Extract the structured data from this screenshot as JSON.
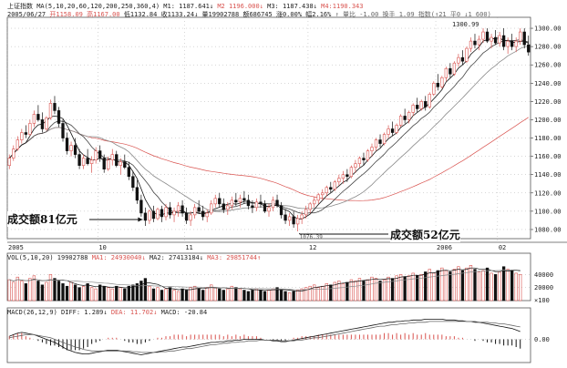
{
  "header": {
    "index_name": "上证指数",
    "ma_params": "MA(5,10,20,60,120,200,250,360,4)",
    "ma1_label": "M1: 1187.641↓",
    "ma2_label": "M2 1196.000↓",
    "ma3_label": "M3: 1187.438↓",
    "ma4_label": "M4:1190.343",
    "date": "2005/06/27",
    "open_label": "开1158.09",
    "high_label": "高1167.00",
    "low_label": "低1132.84",
    "close_label": "收1133.24↓",
    "vol_label": "量19902788",
    "amount_label": "额686745",
    "change_label": "涨0.00%",
    "amp_label": "幅2.16%",
    "extra_label": "↑ 量比 -1.00 换手 1.09 指数(↑21 平0 ↓1 600)"
  },
  "colors": {
    "up": "#d9534f",
    "down": "#111111",
    "ma_short": "#111111",
    "ma_mid": "#444444",
    "ma_long": "#8a8a8a",
    "ma_slow": "#d9534f",
    "dif": "#111111",
    "dea": "#666666",
    "grid": "#9a9a9a"
  },
  "chart_data": {
    "type": "candlestick",
    "ylim": [
      1070,
      1310
    ],
    "y_ticks": [
      "1300.00",
      "1280.00",
      "1260.00",
      "1240.00",
      "1220.00",
      "1200.00",
      "1180.00",
      "1160.00",
      "1140.00",
      "1120.00",
      "1100.00",
      "1080.00"
    ],
    "price_high_label": "1300.99",
    "price_low_label": "1076.39",
    "x_tick_labels": [
      {
        "label": "2005",
        "index": 0
      },
      {
        "label": "10",
        "index": 22
      },
      {
        "label": "11",
        "index": 43
      },
      {
        "label": "12",
        "index": 73
      },
      {
        "label": "2006",
        "index": 104
      },
      {
        "label": "02",
        "index": 119
      }
    ],
    "candles": [
      [
        1150,
        1162,
        1146,
        1158
      ],
      [
        1158,
        1172,
        1155,
        1168
      ],
      [
        1168,
        1182,
        1166,
        1178
      ],
      [
        1178,
        1190,
        1174,
        1186
      ],
      [
        1186,
        1194,
        1180,
        1184
      ],
      [
        1184,
        1200,
        1182,
        1196
      ],
      [
        1196,
        1210,
        1192,
        1206
      ],
      [
        1206,
        1216,
        1198,
        1200
      ],
      [
        1200,
        1208,
        1186,
        1190
      ],
      [
        1190,
        1204,
        1188,
        1202
      ],
      [
        1202,
        1222,
        1200,
        1218
      ],
      [
        1218,
        1226,
        1206,
        1210
      ],
      [
        1210,
        1214,
        1192,
        1196
      ],
      [
        1196,
        1200,
        1176,
        1180
      ],
      [
        1180,
        1186,
        1162,
        1166
      ],
      [
        1166,
        1176,
        1160,
        1172
      ],
      [
        1172,
        1180,
        1158,
        1162
      ],
      [
        1162,
        1168,
        1146,
        1150
      ],
      [
        1150,
        1162,
        1146,
        1158
      ],
      [
        1158,
        1168,
        1150,
        1152
      ],
      [
        1152,
        1160,
        1142,
        1156
      ],
      [
        1156,
        1170,
        1152,
        1166
      ],
      [
        1166,
        1172,
        1154,
        1158
      ],
      [
        1158,
        1162,
        1142,
        1146
      ],
      [
        1146,
        1160,
        1144,
        1156
      ],
      [
        1156,
        1168,
        1150,
        1162
      ],
      [
        1162,
        1166,
        1148,
        1150
      ],
      [
        1150,
        1158,
        1140,
        1154
      ],
      [
        1154,
        1162,
        1146,
        1148
      ],
      [
        1148,
        1154,
        1134,
        1138
      ],
      [
        1138,
        1144,
        1122,
        1126
      ],
      [
        1126,
        1134,
        1108,
        1112
      ],
      [
        1112,
        1118,
        1094,
        1098
      ],
      [
        1098,
        1104,
        1084,
        1090
      ],
      [
        1090,
        1102,
        1086,
        1100
      ],
      [
        1100,
        1106,
        1088,
        1092
      ],
      [
        1092,
        1104,
        1090,
        1102
      ],
      [
        1102,
        1106,
        1088,
        1094
      ],
      [
        1094,
        1108,
        1090,
        1104
      ],
      [
        1104,
        1110,
        1092,
        1096
      ],
      [
        1096,
        1104,
        1088,
        1100
      ],
      [
        1100,
        1110,
        1094,
        1106
      ],
      [
        1106,
        1112,
        1094,
        1098
      ],
      [
        1098,
        1104,
        1086,
        1090
      ],
      [
        1090,
        1100,
        1084,
        1096
      ],
      [
        1096,
        1108,
        1092,
        1104
      ],
      [
        1104,
        1112,
        1098,
        1100
      ],
      [
        1100,
        1106,
        1090,
        1094
      ],
      [
        1094,
        1102,
        1088,
        1098
      ],
      [
        1098,
        1112,
        1096,
        1108
      ],
      [
        1108,
        1118,
        1104,
        1114
      ],
      [
        1114,
        1120,
        1104,
        1108
      ],
      [
        1108,
        1114,
        1098,
        1102
      ],
      [
        1102,
        1110,
        1096,
        1106
      ],
      [
        1106,
        1116,
        1102,
        1112
      ],
      [
        1112,
        1120,
        1106,
        1110
      ],
      [
        1110,
        1118,
        1104,
        1114
      ],
      [
        1114,
        1122,
        1108,
        1112
      ],
      [
        1112,
        1118,
        1102,
        1106
      ],
      [
        1106,
        1112,
        1098,
        1104
      ],
      [
        1104,
        1114,
        1100,
        1110
      ],
      [
        1110,
        1118,
        1104,
        1108
      ],
      [
        1108,
        1112,
        1098,
        1100
      ],
      [
        1100,
        1108,
        1094,
        1104
      ],
      [
        1104,
        1116,
        1100,
        1112
      ],
      [
        1112,
        1118,
        1104,
        1106
      ],
      [
        1106,
        1110,
        1092,
        1096
      ],
      [
        1096,
        1102,
        1086,
        1090
      ],
      [
        1090,
        1098,
        1084,
        1094
      ],
      [
        1094,
        1100,
        1082,
        1086
      ],
      [
        1086,
        1096,
        1078,
        1092
      ],
      [
        1092,
        1100,
        1086,
        1096
      ],
      [
        1096,
        1106,
        1092,
        1102
      ],
      [
        1102,
        1110,
        1098,
        1108
      ],
      [
        1108,
        1116,
        1104,
        1112
      ],
      [
        1112,
        1120,
        1108,
        1118
      ],
      [
        1118,
        1124,
        1112,
        1120
      ],
      [
        1120,
        1128,
        1116,
        1126
      ],
      [
        1126,
        1132,
        1120,
        1124
      ],
      [
        1124,
        1134,
        1122,
        1132
      ],
      [
        1132,
        1140,
        1128,
        1136
      ],
      [
        1136,
        1144,
        1130,
        1140
      ],
      [
        1140,
        1146,
        1132,
        1138
      ],
      [
        1138,
        1150,
        1136,
        1148
      ],
      [
        1148,
        1156,
        1142,
        1152
      ],
      [
        1152,
        1160,
        1148,
        1158
      ],
      [
        1158,
        1164,
        1150,
        1156
      ],
      [
        1156,
        1168,
        1154,
        1166
      ],
      [
        1166,
        1174,
        1160,
        1170
      ],
      [
        1170,
        1180,
        1166,
        1178
      ],
      [
        1178,
        1184,
        1170,
        1174
      ],
      [
        1174,
        1186,
        1172,
        1184
      ],
      [
        1184,
        1194,
        1180,
        1190
      ],
      [
        1190,
        1198,
        1182,
        1186
      ],
      [
        1186,
        1196,
        1184,
        1194
      ],
      [
        1194,
        1206,
        1192,
        1204
      ],
      [
        1204,
        1212,
        1196,
        1200
      ],
      [
        1200,
        1210,
        1196,
        1208
      ],
      [
        1208,
        1218,
        1204,
        1216
      ],
      [
        1216,
        1224,
        1208,
        1212
      ],
      [
        1212,
        1222,
        1210,
        1220
      ],
      [
        1220,
        1226,
        1210,
        1214
      ],
      [
        1214,
        1230,
        1212,
        1228
      ],
      [
        1228,
        1242,
        1226,
        1240
      ],
      [
        1240,
        1250,
        1232,
        1236
      ],
      [
        1236,
        1248,
        1234,
        1246
      ],
      [
        1246,
        1258,
        1242,
        1256
      ],
      [
        1256,
        1262,
        1246,
        1250
      ],
      [
        1250,
        1264,
        1248,
        1262
      ],
      [
        1262,
        1272,
        1258,
        1268
      ],
      [
        1268,
        1276,
        1260,
        1264
      ],
      [
        1264,
        1280,
        1262,
        1278
      ],
      [
        1278,
        1290,
        1274,
        1286
      ],
      [
        1286,
        1294,
        1278,
        1282
      ],
      [
        1282,
        1292,
        1276,
        1288
      ],
      [
        1288,
        1300,
        1284,
        1296
      ],
      [
        1296,
        1300,
        1284,
        1286
      ],
      [
        1286,
        1294,
        1278,
        1290
      ],
      [
        1290,
        1298,
        1282,
        1284
      ],
      [
        1284,
        1296,
        1280,
        1292
      ],
      [
        1292,
        1300,
        1276,
        1280
      ],
      [
        1280,
        1290,
        1272,
        1286
      ],
      [
        1286,
        1294,
        1276,
        1280
      ],
      [
        1280,
        1290,
        1274,
        1286
      ],
      [
        1286,
        1300,
        1282,
        1296
      ],
      [
        1296,
        1300,
        1278,
        1282
      ],
      [
        1282,
        1292,
        1270,
        1274
      ]
    ],
    "annotations": [
      {
        "text": "成交额81亿元",
        "candle_index": 33
      },
      {
        "text": "成交额52亿元",
        "candle_index": 70
      }
    ],
    "volume": {
      "label": "VOL(5,10,20) 19902788",
      "ma1_label": "MA1: 24930040↓",
      "ma2_label": "MA2: 27413184↓",
      "ma3_label": "MA3: 29851744↑",
      "ylim": [
        0,
        60000000
      ],
      "y_ticks": [
        "40000",
        "20000"
      ],
      "unit_label": "×100",
      "values": [
        32,
        28,
        36,
        30,
        26,
        34,
        38,
        30,
        24,
        28,
        40,
        34,
        30,
        26,
        22,
        28,
        24,
        20,
        22,
        26,
        20,
        18,
        24,
        22,
        20,
        18,
        22,
        20,
        18,
        22,
        24,
        26,
        30,
        34,
        22,
        18,
        20,
        16,
        18,
        20,
        16,
        14,
        18,
        16,
        20,
        22,
        18,
        16,
        20,
        24,
        20,
        18,
        16,
        18,
        22,
        20,
        18,
        16,
        14,
        16,
        18,
        16,
        14,
        16,
        18,
        20,
        16,
        14,
        12,
        14,
        16,
        18,
        20,
        22,
        24,
        20,
        22,
        26,
        24,
        28,
        30,
        26,
        28,
        32,
        30,
        34,
        30,
        32,
        36,
        34,
        30,
        32,
        36,
        34,
        38,
        40,
        36,
        38,
        42,
        38,
        40,
        44,
        48,
        42,
        46,
        50,
        46,
        44,
        48,
        52,
        46,
        50,
        54,
        48,
        44,
        46,
        50,
        42,
        40,
        44,
        52,
        48,
        46,
        42,
        40
      ]
    },
    "macd": {
      "label": "MACD(26,12,9)",
      "dif_label": "DIFF: 1.289↓",
      "dea_label": "DEA: 11.702↓",
      "macd_label": "MACD: -20.84",
      "ylim": [
        -30,
        30
      ],
      "y_ticks": [
        "0.00"
      ],
      "dif": [
        4,
        6,
        8,
        9,
        8,
        7,
        6,
        4,
        2,
        0,
        -2,
        -4,
        -7,
        -10,
        -13,
        -15,
        -17,
        -18,
        -19,
        -19,
        -18,
        -17,
        -16,
        -15,
        -14,
        -14,
        -14,
        -15,
        -16,
        -17,
        -18,
        -19,
        -20,
        -19,
        -18,
        -17,
        -16,
        -15,
        -14,
        -13,
        -12,
        -11,
        -10,
        -10,
        -9,
        -8,
        -7,
        -6,
        -5,
        -4,
        -4,
        -3,
        -3,
        -2,
        -2,
        -1,
        -1,
        0,
        0,
        0,
        0,
        0,
        -1,
        -1,
        -2,
        -2,
        -3,
        -3,
        -2,
        -1,
        0,
        1,
        2,
        3,
        4,
        5,
        6,
        7,
        8,
        9,
        10,
        11,
        12,
        13,
        14,
        15,
        16,
        17,
        18,
        19,
        20,
        21,
        22,
        22,
        23,
        23,
        24,
        24,
        25,
        25,
        25,
        26,
        26,
        26,
        26,
        26,
        25,
        25,
        25,
        24,
        24,
        23,
        23,
        22,
        22,
        21,
        20,
        19,
        18,
        17,
        16,
        15,
        14,
        12,
        10
      ],
      "dea": [
        2,
        3,
        4,
        5,
        6,
        6,
        6,
        5,
        4,
        3,
        2,
        0,
        -2,
        -4,
        -6,
        -8,
        -10,
        -11,
        -13,
        -14,
        -15,
        -15,
        -15,
        -15,
        -15,
        -15,
        -15,
        -15,
        -15,
        -15,
        -16,
        -16,
        -17,
        -17,
        -17,
        -17,
        -17,
        -16,
        -16,
        -15,
        -15,
        -14,
        -13,
        -12,
        -12,
        -11,
        -10,
        -9,
        -8,
        -7,
        -7,
        -6,
        -5,
        -5,
        -4,
        -4,
        -3,
        -3,
        -2,
        -2,
        -2,
        -1,
        -1,
        -1,
        -1,
        -1,
        -2,
        -2,
        -2,
        -2,
        -1,
        -1,
        0,
        1,
        2,
        2,
        3,
        4,
        5,
        6,
        7,
        8,
        9,
        10,
        11,
        12,
        13,
        14,
        15,
        16,
        17,
        17,
        18,
        19,
        19,
        20,
        20,
        21,
        21,
        22,
        22,
        22,
        23,
        23,
        23,
        23,
        23,
        23,
        23,
        23,
        23,
        23,
        23,
        23,
        22,
        22,
        22,
        21,
        21,
        20,
        20,
        19,
        18,
        17,
        16
      ]
    }
  }
}
